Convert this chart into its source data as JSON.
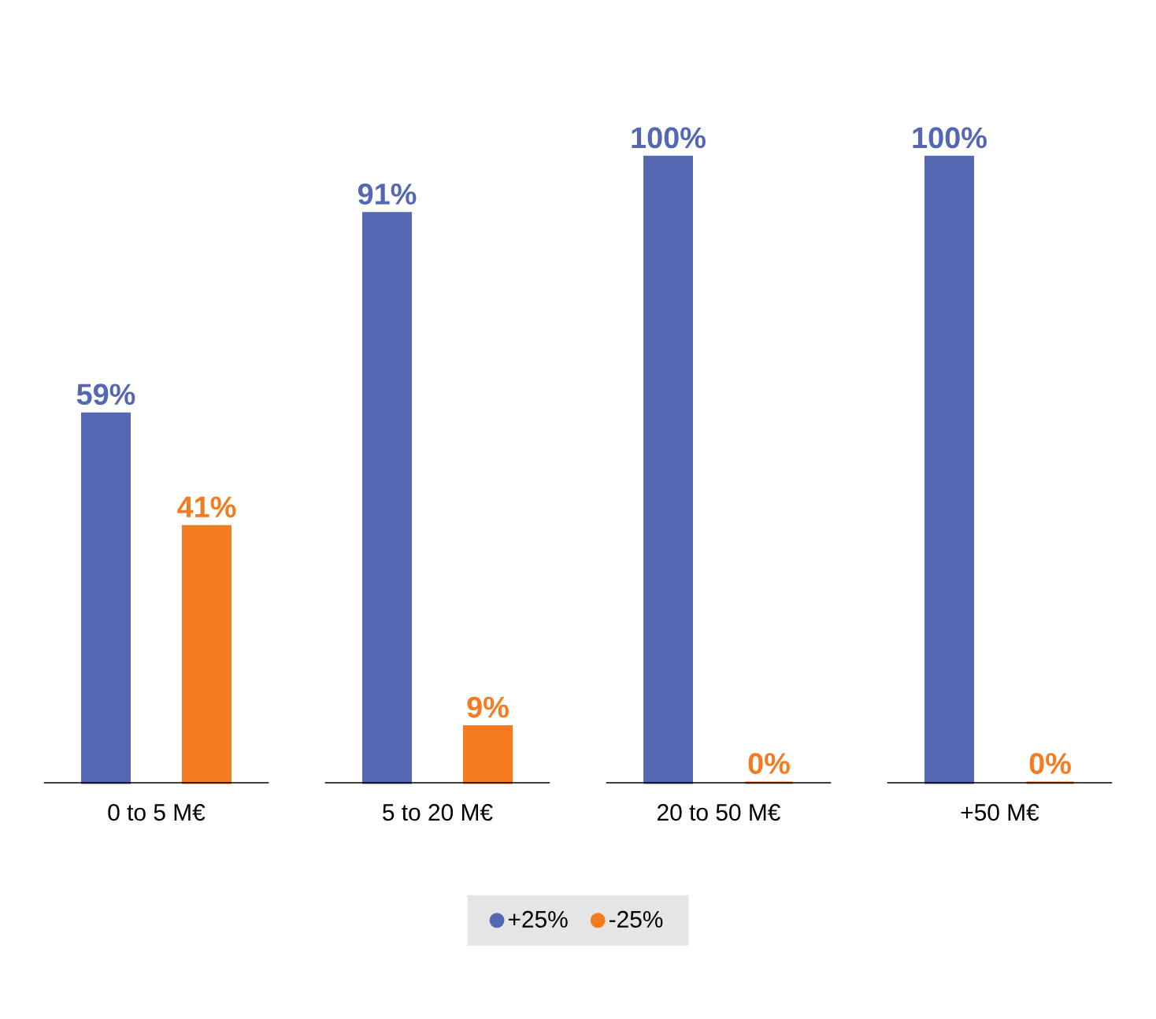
{
  "chart_data": {
    "type": "bar",
    "categories": [
      "0 to 5 M€",
      "5 to 20 M€",
      "20 to 50 M€",
      "+50 M€"
    ],
    "series": [
      {
        "name": "+25%",
        "color": "#5467b3",
        "values": [
          59,
          91,
          100,
          100
        ],
        "value_labels": [
          "59%",
          "91%",
          "100%",
          "100%"
        ]
      },
      {
        "name": "-25%",
        "color": "#f47b20",
        "values": [
          41,
          9,
          0,
          0
        ],
        "value_labels": [
          "41%",
          "9%",
          "0%",
          "0%"
        ]
      }
    ],
    "tick_labels": "x",
    "legend": "bottom"
  }
}
